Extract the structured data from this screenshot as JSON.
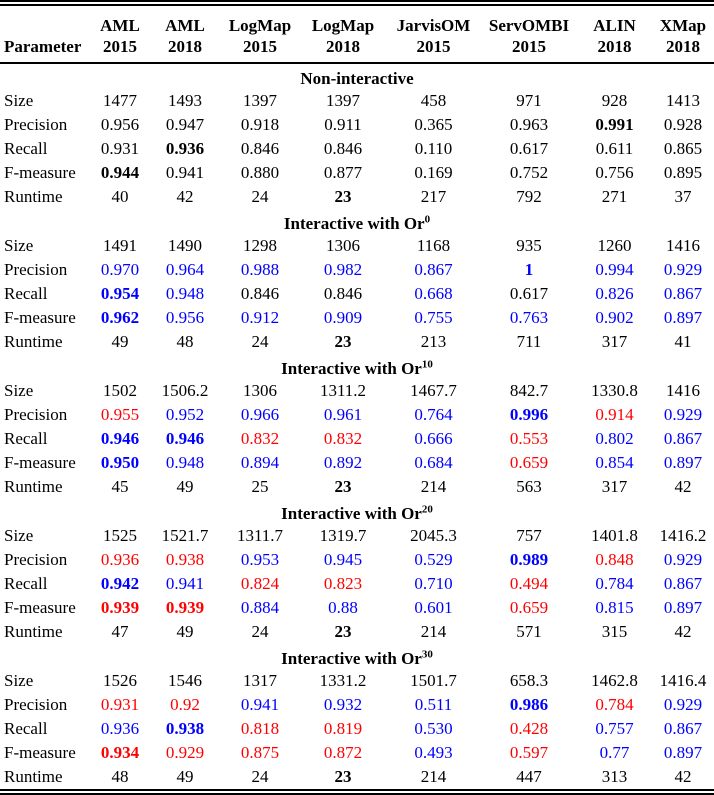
{
  "palette": {
    "highlight_blue": "#0000ff",
    "highlight_red": "#ff0000",
    "text_black": "#000000",
    "background": "#ffffff"
  },
  "header": {
    "parameter_label": "Parameter",
    "columns": [
      {
        "tool": "AML",
        "year": "2015"
      },
      {
        "tool": "AML",
        "year": "2018"
      },
      {
        "tool": "LogMap",
        "year": "2015"
      },
      {
        "tool": "LogMap",
        "year": "2018"
      },
      {
        "tool": "JarvisOM",
        "year": "2015"
      },
      {
        "tool": "ServOMBI",
        "year": "2015"
      },
      {
        "tool": "ALIN",
        "year": "2018"
      },
      {
        "tool": "XMap",
        "year": "2018"
      }
    ]
  },
  "sections": [
    {
      "title": "Non-interactive",
      "title_sup": "",
      "rows": [
        {
          "label": "Size",
          "cells": [
            [
              "1477",
              ""
            ],
            [
              "1493",
              ""
            ],
            [
              "1397",
              ""
            ],
            [
              "1397",
              ""
            ],
            [
              "458",
              ""
            ],
            [
              "971",
              ""
            ],
            [
              "928",
              ""
            ],
            [
              "1413",
              ""
            ]
          ]
        },
        {
          "label": "Precision",
          "cells": [
            [
              "0.956",
              ""
            ],
            [
              "0.947",
              ""
            ],
            [
              "0.918",
              ""
            ],
            [
              "0.911",
              ""
            ],
            [
              "0.365",
              ""
            ],
            [
              "0.963",
              ""
            ],
            [
              "0.991",
              "bold"
            ],
            [
              "0.928",
              ""
            ]
          ]
        },
        {
          "label": "Recall",
          "cells": [
            [
              "0.931",
              ""
            ],
            [
              "0.936",
              "bold"
            ],
            [
              "0.846",
              ""
            ],
            [
              "0.846",
              ""
            ],
            [
              "0.110",
              ""
            ],
            [
              "0.617",
              ""
            ],
            [
              "0.611",
              ""
            ],
            [
              "0.865",
              ""
            ]
          ]
        },
        {
          "label": "F-measure",
          "cells": [
            [
              "0.944",
              "bold"
            ],
            [
              "0.941",
              ""
            ],
            [
              "0.880",
              ""
            ],
            [
              "0.877",
              ""
            ],
            [
              "0.169",
              ""
            ],
            [
              "0.752",
              ""
            ],
            [
              "0.756",
              ""
            ],
            [
              "0.895",
              ""
            ]
          ]
        },
        {
          "label": "Runtime",
          "cells": [
            [
              "40",
              ""
            ],
            [
              "42",
              ""
            ],
            [
              "24",
              ""
            ],
            [
              "23",
              "bold"
            ],
            [
              "217",
              ""
            ],
            [
              "792",
              ""
            ],
            [
              "271",
              ""
            ],
            [
              "37",
              ""
            ]
          ]
        }
      ]
    },
    {
      "title": "Interactive with Or",
      "title_sup": "0",
      "rows": [
        {
          "label": "Size",
          "cells": [
            [
              "1491",
              ""
            ],
            [
              "1490",
              ""
            ],
            [
              "1298",
              ""
            ],
            [
              "1306",
              ""
            ],
            [
              "1168",
              ""
            ],
            [
              "935",
              ""
            ],
            [
              "1260",
              ""
            ],
            [
              "1416",
              ""
            ]
          ]
        },
        {
          "label": "Precision",
          "cells": [
            [
              "0.970",
              "blue"
            ],
            [
              "0.964",
              "blue"
            ],
            [
              "0.988",
              "blue"
            ],
            [
              "0.982",
              "blue"
            ],
            [
              "0.867",
              "blue"
            ],
            [
              "1",
              "blue bold"
            ],
            [
              "0.994",
              "blue"
            ],
            [
              "0.929",
              "blue"
            ]
          ]
        },
        {
          "label": "Recall",
          "cells": [
            [
              "0.954",
              "blue bold"
            ],
            [
              "0.948",
              "blue"
            ],
            [
              "0.846",
              ""
            ],
            [
              "0.846",
              ""
            ],
            [
              "0.668",
              "blue"
            ],
            [
              "0.617",
              ""
            ],
            [
              "0.826",
              "blue"
            ],
            [
              "0.867",
              "blue"
            ]
          ]
        },
        {
          "label": "F-measure",
          "cells": [
            [
              "0.962",
              "blue bold"
            ],
            [
              "0.956",
              "blue"
            ],
            [
              "0.912",
              "blue"
            ],
            [
              "0.909",
              "blue"
            ],
            [
              "0.755",
              "blue"
            ],
            [
              "0.763",
              "blue"
            ],
            [
              "0.902",
              "blue"
            ],
            [
              "0.897",
              "blue"
            ]
          ]
        },
        {
          "label": "Runtime",
          "cells": [
            [
              "49",
              ""
            ],
            [
              "48",
              ""
            ],
            [
              "24",
              ""
            ],
            [
              "23",
              "bold"
            ],
            [
              "213",
              ""
            ],
            [
              "711",
              ""
            ],
            [
              "317",
              ""
            ],
            [
              "41",
              ""
            ]
          ]
        }
      ]
    },
    {
      "title": "Interactive with Or",
      "title_sup": "10",
      "rows": [
        {
          "label": "Size",
          "cells": [
            [
              "1502",
              ""
            ],
            [
              "1506.2",
              ""
            ],
            [
              "1306",
              ""
            ],
            [
              "1311.2",
              ""
            ],
            [
              "1467.7",
              ""
            ],
            [
              "842.7",
              ""
            ],
            [
              "1330.8",
              ""
            ],
            [
              "1416",
              ""
            ]
          ]
        },
        {
          "label": "Precision",
          "cells": [
            [
              "0.955",
              "red"
            ],
            [
              "0.952",
              "blue"
            ],
            [
              "0.966",
              "blue"
            ],
            [
              "0.961",
              "blue"
            ],
            [
              "0.764",
              "blue"
            ],
            [
              "0.996",
              "blue bold"
            ],
            [
              "0.914",
              "red"
            ],
            [
              "0.929",
              "blue"
            ]
          ]
        },
        {
          "label": "Recall",
          "cells": [
            [
              "0.946",
              "blue bold"
            ],
            [
              "0.946",
              "blue bold"
            ],
            [
              "0.832",
              "red"
            ],
            [
              "0.832",
              "red"
            ],
            [
              "0.666",
              "blue"
            ],
            [
              "0.553",
              "red"
            ],
            [
              "0.802",
              "blue"
            ],
            [
              "0.867",
              "blue"
            ]
          ]
        },
        {
          "label": "F-measure",
          "cells": [
            [
              "0.950",
              "blue bold"
            ],
            [
              "0.948",
              "blue"
            ],
            [
              "0.894",
              "blue"
            ],
            [
              "0.892",
              "blue"
            ],
            [
              "0.684",
              "blue"
            ],
            [
              "0.659",
              "red"
            ],
            [
              "0.854",
              "blue"
            ],
            [
              "0.897",
              "blue"
            ]
          ]
        },
        {
          "label": "Runtime",
          "cells": [
            [
              "45",
              ""
            ],
            [
              "49",
              ""
            ],
            [
              "25",
              ""
            ],
            [
              "23",
              "bold"
            ],
            [
              "214",
              ""
            ],
            [
              "563",
              ""
            ],
            [
              "317",
              ""
            ],
            [
              "42",
              ""
            ]
          ]
        }
      ]
    },
    {
      "title": "Interactive with Or",
      "title_sup": "20",
      "rows": [
        {
          "label": "Size",
          "cells": [
            [
              "1525",
              ""
            ],
            [
              "1521.7",
              ""
            ],
            [
              "1311.7",
              ""
            ],
            [
              "1319.7",
              ""
            ],
            [
              "2045.3",
              ""
            ],
            [
              "757",
              ""
            ],
            [
              "1401.8",
              ""
            ],
            [
              "1416.2",
              ""
            ]
          ]
        },
        {
          "label": "Precision",
          "cells": [
            [
              "0.936",
              "red"
            ],
            [
              "0.938",
              "red"
            ],
            [
              "0.953",
              "blue"
            ],
            [
              "0.945",
              "blue"
            ],
            [
              "0.529",
              "blue"
            ],
            [
              "0.989",
              "blue bold"
            ],
            [
              "0.848",
              "red"
            ],
            [
              "0.929",
              "blue"
            ]
          ]
        },
        {
          "label": "Recall",
          "cells": [
            [
              "0.942",
              "blue bold"
            ],
            [
              "0.941",
              "blue"
            ],
            [
              "0.824",
              "red"
            ],
            [
              "0.823",
              "red"
            ],
            [
              "0.710",
              "blue"
            ],
            [
              "0.494",
              "red"
            ],
            [
              "0.784",
              "blue"
            ],
            [
              "0.867",
              "blue"
            ]
          ]
        },
        {
          "label": "F-measure",
          "cells": [
            [
              "0.939",
              "red bold"
            ],
            [
              "0.939",
              "red bold"
            ],
            [
              "0.884",
              "blue"
            ],
            [
              "0.88",
              "blue"
            ],
            [
              "0.601",
              "blue"
            ],
            [
              "0.659",
              "red"
            ],
            [
              "0.815",
              "blue"
            ],
            [
              "0.897",
              "blue"
            ]
          ]
        },
        {
          "label": "Runtime",
          "cells": [
            [
              "47",
              ""
            ],
            [
              "49",
              ""
            ],
            [
              "24",
              ""
            ],
            [
              "23",
              "bold"
            ],
            [
              "214",
              ""
            ],
            [
              "571",
              ""
            ],
            [
              "315",
              ""
            ],
            [
              "42",
              ""
            ]
          ]
        }
      ]
    },
    {
      "title": "Interactive with Or",
      "title_sup": "30",
      "rows": [
        {
          "label": "Size",
          "cells": [
            [
              "1526",
              ""
            ],
            [
              "1546",
              ""
            ],
            [
              "1317",
              ""
            ],
            [
              "1331.2",
              ""
            ],
            [
              "1501.7",
              ""
            ],
            [
              "658.3",
              ""
            ],
            [
              "1462.8",
              ""
            ],
            [
              "1416.4",
              ""
            ]
          ]
        },
        {
          "label": "Precision",
          "cells": [
            [
              "0.931",
              "red"
            ],
            [
              "0.92",
              "red"
            ],
            [
              "0.941",
              "blue"
            ],
            [
              "0.932",
              "blue"
            ],
            [
              "0.511",
              "blue"
            ],
            [
              "0.986",
              "blue bold"
            ],
            [
              "0.784",
              "red"
            ],
            [
              "0.929",
              "blue"
            ]
          ]
        },
        {
          "label": "Recall",
          "cells": [
            [
              "0.936",
              "blue"
            ],
            [
              "0.938",
              "blue bold"
            ],
            [
              "0.818",
              "red"
            ],
            [
              "0.819",
              "red"
            ],
            [
              "0.530",
              "blue"
            ],
            [
              "0.428",
              "red"
            ],
            [
              "0.757",
              "blue"
            ],
            [
              "0.867",
              "blue"
            ]
          ]
        },
        {
          "label": "F-measure",
          "cells": [
            [
              "0.934",
              "red bold"
            ],
            [
              "0.929",
              "red"
            ],
            [
              "0.875",
              "red"
            ],
            [
              "0.872",
              "red"
            ],
            [
              "0.493",
              "blue"
            ],
            [
              "0.597",
              "red"
            ],
            [
              "0.77",
              "blue"
            ],
            [
              "0.897",
              "blue"
            ]
          ]
        },
        {
          "label": "Runtime",
          "cells": [
            [
              "48",
              ""
            ],
            [
              "49",
              ""
            ],
            [
              "24",
              ""
            ],
            [
              "23",
              "bold"
            ],
            [
              "214",
              ""
            ],
            [
              "447",
              ""
            ],
            [
              "313",
              ""
            ],
            [
              "42",
              ""
            ]
          ]
        }
      ]
    }
  ]
}
